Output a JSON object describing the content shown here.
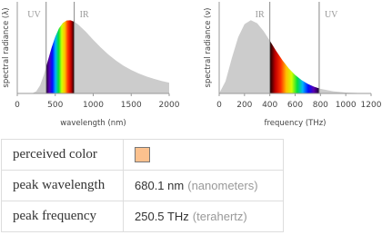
{
  "chart_data": [
    {
      "type": "area",
      "xlabel": "wavelength (nm)",
      "ylabel": "spectral radiance (λ)",
      "x": [
        0,
        50,
        100,
        150,
        200,
        250,
        300,
        350,
        400,
        450,
        500,
        550,
        600,
        650,
        700,
        750,
        800,
        900,
        1000,
        1100,
        1200,
        1300,
        1400,
        1500,
        1600,
        1700,
        1800,
        1900,
        2000
      ],
      "values": [
        0,
        0,
        0,
        0,
        0.003,
        0.029,
        0.11,
        0.254,
        0.436,
        0.618,
        0.774,
        0.889,
        0.96,
        0.995,
        0.998,
        0.978,
        0.942,
        0.844,
        0.732,
        0.626,
        0.531,
        0.448,
        0.378,
        0.32,
        0.273,
        0.232,
        0.199,
        0.17,
        0.147
      ],
      "color": "#cccccc",
      "xlim": [
        0,
        2000
      ],
      "xticks": [
        0,
        500,
        1000,
        1500,
        2000
      ],
      "ylim": [
        0,
        1.25
      ],
      "band_labels": [
        "UV",
        "IR"
      ],
      "visible_band": [
        380,
        750
      ],
      "band_gradient": [
        "#1a0030",
        "#5a00b0",
        "#0010ff",
        "#00b4ff",
        "#00e040",
        "#d0ff00",
        "#ffc000",
        "#ff3000",
        "#c00000",
        "#100000"
      ]
    },
    {
      "type": "area",
      "xlabel": "frequency (THz)",
      "ylabel": "spectral radiance (ν)",
      "x": [
        0,
        50,
        100,
        150,
        200,
        250,
        300,
        350,
        400,
        450,
        500,
        550,
        600,
        650,
        700,
        750,
        800,
        900,
        1000,
        1100,
        1200
      ],
      "values": [
        0,
        0.166,
        0.482,
        0.768,
        0.945,
        0.999,
        0.958,
        0.853,
        0.719,
        0.58,
        0.451,
        0.341,
        0.252,
        0.183,
        0.13,
        0.091,
        0.063,
        0.029,
        0.013,
        0.006,
        0.002
      ],
      "color": "#cccccc",
      "xlim": [
        0,
        1200
      ],
      "xticks": [
        0,
        200,
        400,
        600,
        800,
        1000,
        1200
      ],
      "ylim": [
        0,
        1.25
      ],
      "band_labels": [
        "IR",
        "UV"
      ],
      "visible_band": [
        400,
        790
      ],
      "band_gradient": [
        "#100000",
        "#c00000",
        "#ff3000",
        "#ffc000",
        "#d0ff00",
        "#00e040",
        "#00b4ff",
        "#0010ff",
        "#5a00b0",
        "#1a0030"
      ]
    }
  ],
  "table": {
    "rows": [
      {
        "label": "perceived color",
        "swatch": "#fcc18e"
      },
      {
        "label": "peak wavelength",
        "value": 680.1,
        "unit": "nm",
        "unit_name": "(nanometers)"
      },
      {
        "label": "peak frequency",
        "value": 250.5,
        "unit": "THz",
        "unit_name": "(terahertz)"
      }
    ]
  }
}
